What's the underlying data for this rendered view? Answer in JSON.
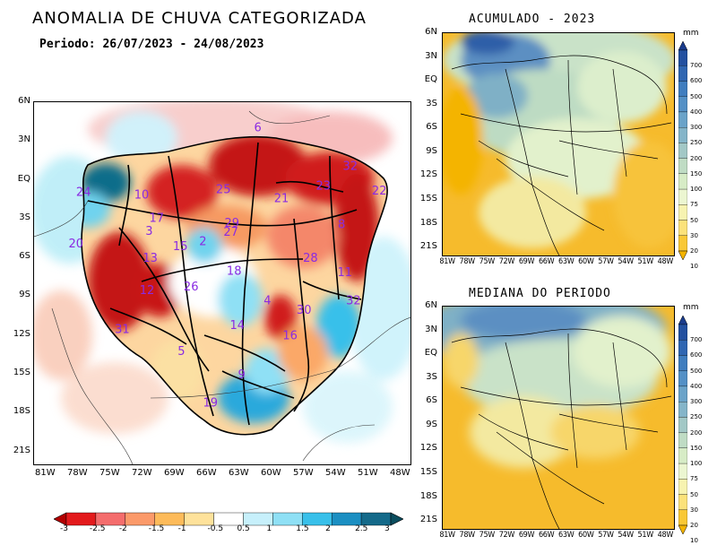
{
  "main_title": "ANOMALIA DE CHUVA CATEGORIZADA",
  "period": "Periodo: 26/07/2023 - 24/08/2023",
  "top_right_title": "ACUMULADO - 2023",
  "bottom_right_title": "MEDIANA DO PERIODO",
  "unit_top": "mm",
  "unit_bottom": "mm",
  "lat_ticks": [
    "6N",
    "3N",
    "EQ",
    "3S",
    "6S",
    "9S",
    "12S",
    "15S",
    "18S",
    "21S"
  ],
  "lat_ticks_small": [
    "6N",
    "3N",
    "EQ",
    "3S",
    "6S",
    "9S",
    "12S",
    "15S",
    "18S",
    "21S"
  ],
  "lon_ticks": [
    "81W",
    "78W",
    "75W",
    "72W",
    "69W",
    "66W",
    "63W",
    "60W",
    "57W",
    "54W",
    "51W",
    "48W"
  ],
  "lon_ticks_small": [
    "81W",
    "78W",
    "75W",
    "72W",
    "69W",
    "66W",
    "63W",
    "60W",
    "57W",
    "54W",
    "51W",
    "48W"
  ],
  "anomaly_colorbar": {
    "labels": [
      "-3",
      "-2.5",
      "-2",
      "-1.5",
      "-1",
      "-0.5",
      "0.5",
      "1",
      "1.5",
      "2",
      "2.5",
      "3"
    ],
    "colors": [
      "#b30000",
      "#e31a1c",
      "#f46d6d",
      "#fb9a6a",
      "#fdbb5a",
      "#fee29b",
      "#ffffff",
      "#c7f0fb",
      "#8fe0f5",
      "#38c0ea",
      "#1b8fc2",
      "#146a8a",
      "#0a4d5e"
    ]
  },
  "precip_colorbar": {
    "labels": [
      "700",
      "600",
      "500",
      "400",
      "300",
      "250",
      "200",
      "150",
      "100",
      "75",
      "50",
      "30",
      "20",
      "10"
    ],
    "colors": [
      "#1a3c8c",
      "#2250a0",
      "#2f66b2",
      "#3f7dbf",
      "#5390c6",
      "#6aa3c9",
      "#84b5c9",
      "#a2c8c6",
      "#bfdcc4",
      "#d7ecc6",
      "#ecf6d1",
      "#f7f3b0",
      "#fbe27a",
      "#f9c835",
      "#f4b400"
    ]
  },
  "basin_labels": [
    {
      "id": "6",
      "lon": -61.2,
      "lat": 4.0
    },
    {
      "id": "32",
      "lon": -52.6,
      "lat": 1.0
    },
    {
      "id": "23",
      "lon": -55.1,
      "lat": -0.5
    },
    {
      "id": "24",
      "lon": -77.4,
      "lat": -1.0
    },
    {
      "id": "10",
      "lon": -72.0,
      "lat": -1.2
    },
    {
      "id": "25",
      "lon": -64.4,
      "lat": -0.8
    },
    {
      "id": "21",
      "lon": -59.0,
      "lat": -1.5
    },
    {
      "id": "22",
      "lon": -49.9,
      "lat": -0.9
    },
    {
      "id": "17",
      "lon": -70.6,
      "lat": -3.0
    },
    {
      "id": "29",
      "lon": -63.6,
      "lat": -3.4
    },
    {
      "id": "27",
      "lon": -63.7,
      "lat": -4.1
    },
    {
      "id": "3",
      "lon": -71.3,
      "lat": -4.0
    },
    {
      "id": "8",
      "lon": -53.4,
      "lat": -3.5
    },
    {
      "id": "20",
      "lon": -78.1,
      "lat": -5.0
    },
    {
      "id": "2",
      "lon": -66.3,
      "lat": -4.8
    },
    {
      "id": "15",
      "lon": -68.4,
      "lat": -5.2
    },
    {
      "id": "28",
      "lon": -56.3,
      "lat": -6.1
    },
    {
      "id": "13",
      "lon": -71.2,
      "lat": -6.1
    },
    {
      "id": "18",
      "lon": -63.4,
      "lat": -7.1
    },
    {
      "id": "11",
      "lon": -53.1,
      "lat": -7.2
    },
    {
      "id": "26",
      "lon": -67.4,
      "lat": -8.3
    },
    {
      "id": "12",
      "lon": -71.5,
      "lat": -8.6
    },
    {
      "id": "4",
      "lon": -60.3,
      "lat": -9.4
    },
    {
      "id": "32",
      "lon": -52.3,
      "lat": -9.4
    },
    {
      "id": "30",
      "lon": -56.9,
      "lat": -10.1
    },
    {
      "id": "14",
      "lon": -63.1,
      "lat": -11.3
    },
    {
      "id": "31",
      "lon": -73.8,
      "lat": -11.6
    },
    {
      "id": "16",
      "lon": -58.2,
      "lat": -12.1
    },
    {
      "id": "5",
      "lon": -68.3,
      "lat": -13.3
    },
    {
      "id": "9",
      "lon": -62.7,
      "lat": -15.1
    },
    {
      "id": "19",
      "lon": -65.6,
      "lat": -17.3
    }
  ]
}
